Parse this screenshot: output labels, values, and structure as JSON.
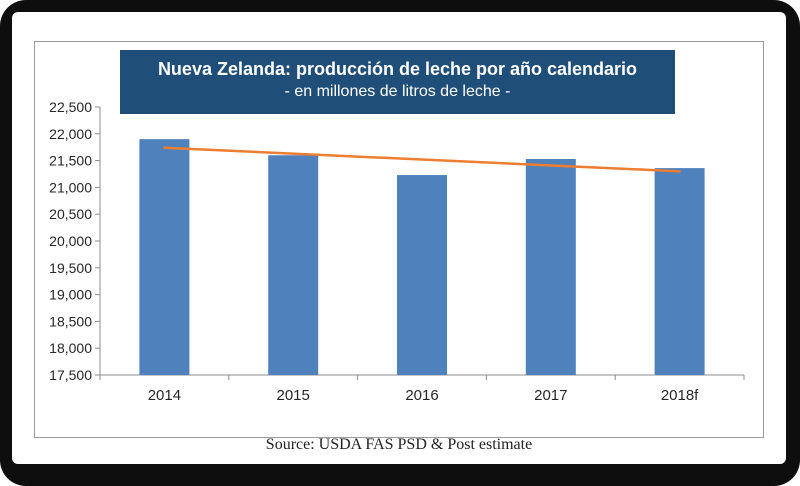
{
  "title": "Nueva Zelanda: producción de leche por año calendario",
  "subtitle": "- en millones de litros de leche -",
  "source": "Source: USDA FAS PSD & Post estimate",
  "colors": {
    "bar": "#4f81bd",
    "trend": "#ed7d31",
    "title_band": "#1f4e79",
    "frame": "#0e0e0e"
  },
  "chart_data": {
    "type": "bar",
    "categories": [
      "2014",
      "2015",
      "2016",
      "2017",
      "2018f"
    ],
    "series": [
      {
        "values": [
          21900,
          21600,
          21230,
          21530,
          21360
        ]
      }
    ],
    "trendline": {
      "type": "linear",
      "start": 21740,
      "end": 21300
    },
    "ylim": [
      17500,
      22500
    ],
    "yticks": [
      17500,
      18000,
      18500,
      19000,
      19500,
      20000,
      20500,
      21000,
      21500,
      22000,
      22500
    ],
    "ytick_labels": [
      "17,500",
      "18,000",
      "18,500",
      "19,000",
      "19,500",
      "20,000",
      "20,500",
      "21,000",
      "21,500",
      "22,000",
      "22,500"
    ],
    "xlabel": "",
    "ylabel": "",
    "grid": false,
    "legend": "none"
  }
}
